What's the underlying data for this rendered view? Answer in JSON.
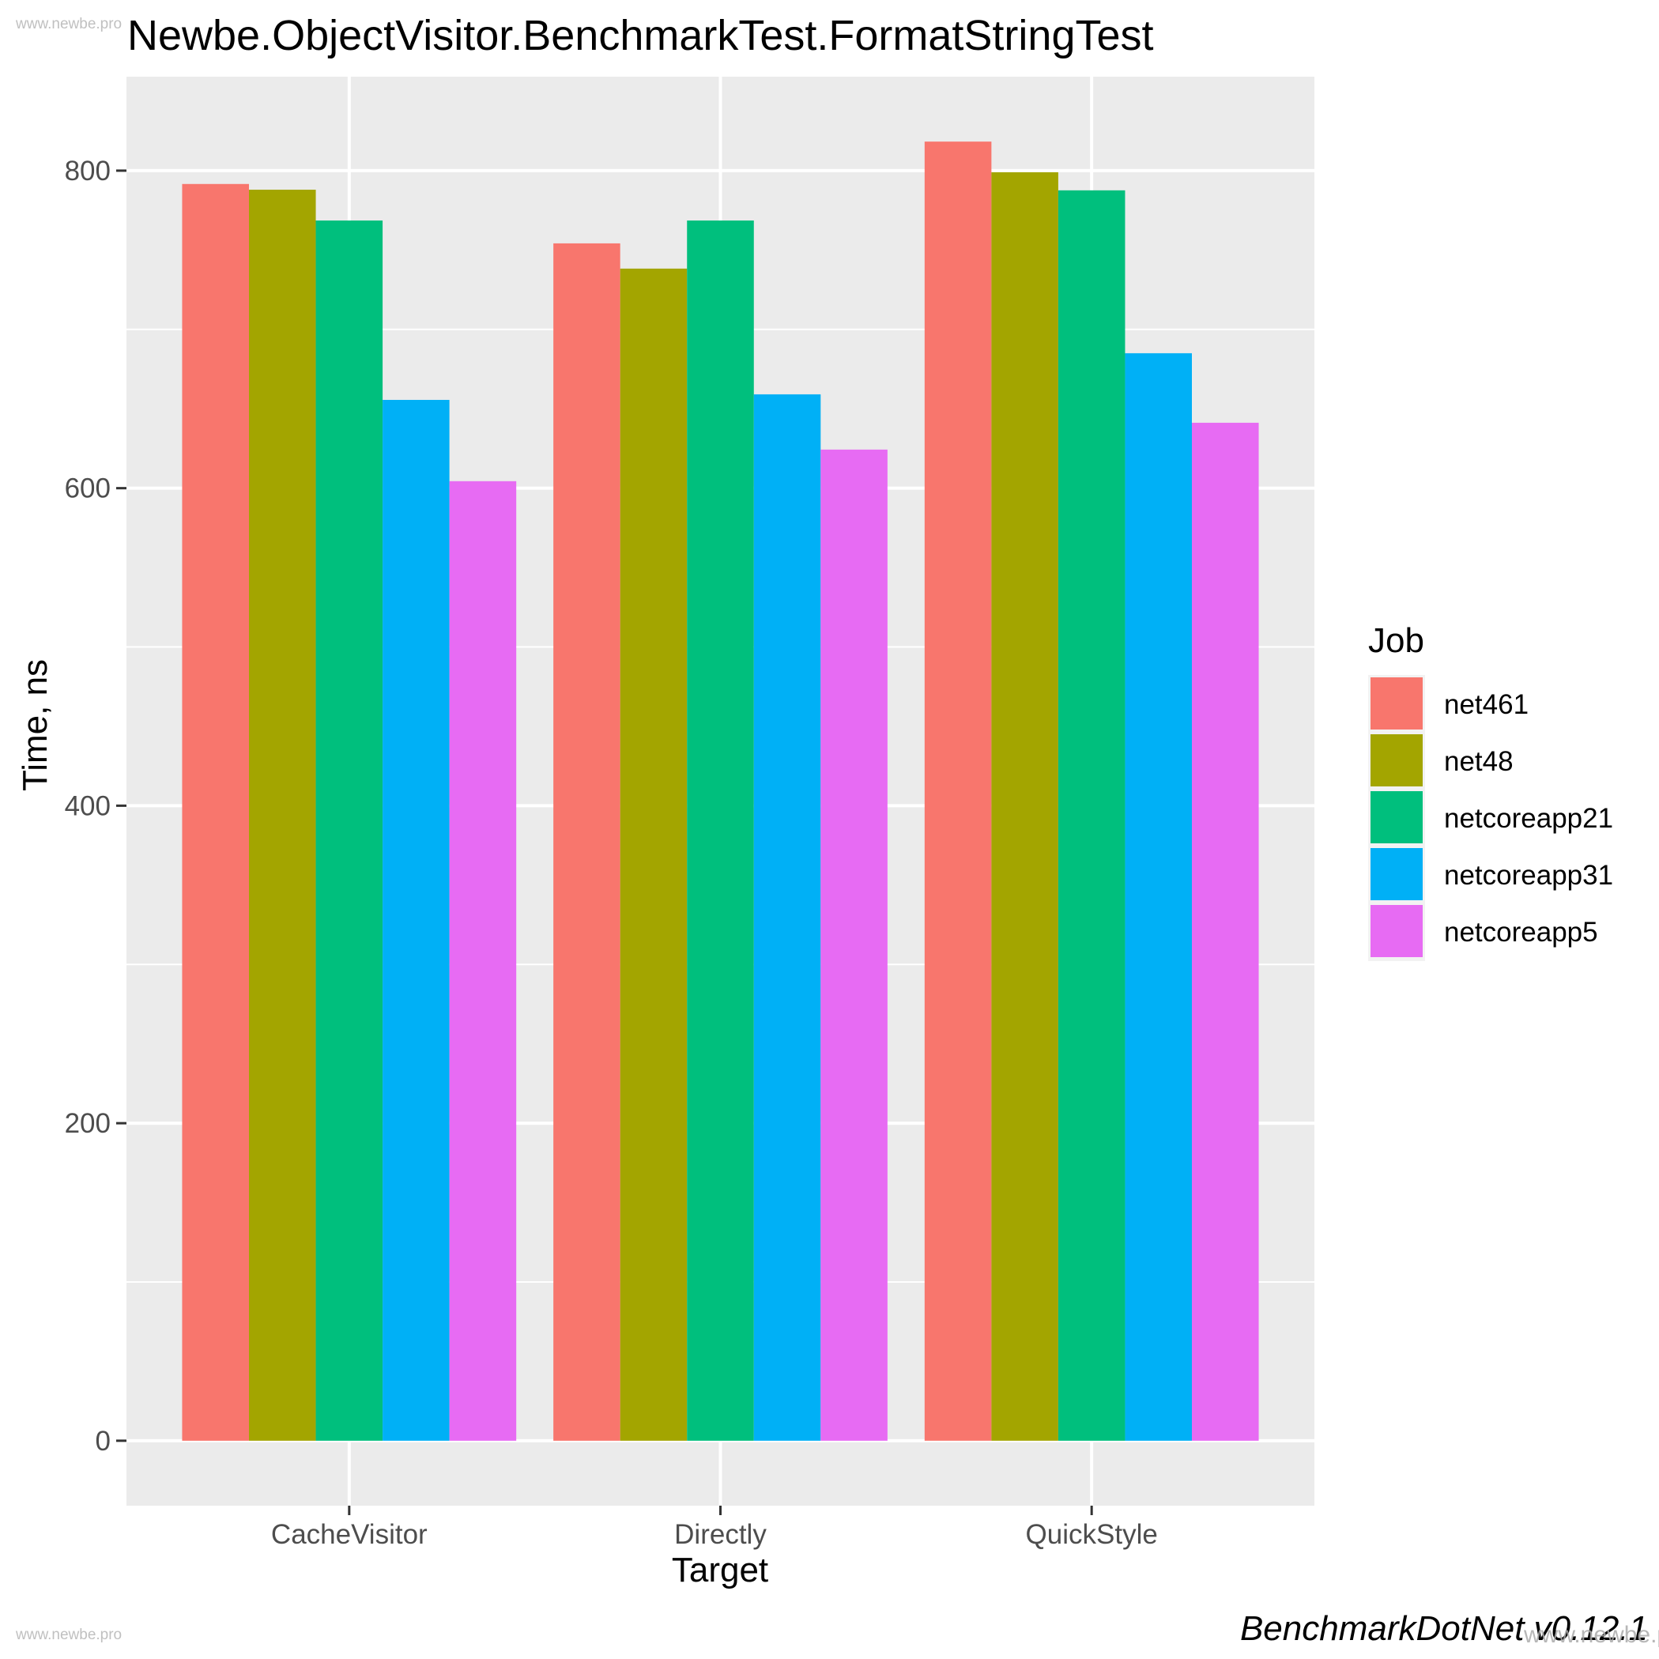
{
  "watermarks": {
    "top_left": "www.newbe.pro",
    "bottom_left": "www.newbe.pro",
    "bottom_right": "www.newbe.pro"
  },
  "header": {
    "title": "Newbe.ObjectVisitor.BenchmarkTest.FormatStringTest"
  },
  "footer": {
    "caption": "BenchmarkDotNet v0.12.1"
  },
  "axes": {
    "xlabel": "Target",
    "ylabel": "Time, ns"
  },
  "legend": {
    "title": "Job"
  },
  "colors": {
    "panel_background": "#EBEBEB",
    "gridline": "#FFFFFF",
    "tick_label": "#4D4D4D",
    "tick_mark": "#333333",
    "legend_key_background": "#F2F2F2",
    "net461": "#F8766D",
    "net48": "#A3A500",
    "netcoreapp21": "#00BF7D",
    "netcoreapp31": "#00B0F6",
    "netcoreapp5": "#E76BF3"
  },
  "chart_data": {
    "type": "bar",
    "title": "Newbe.ObjectVisitor.BenchmarkTest.FormatStringTest",
    "xlabel": "Target",
    "ylabel": "Time, ns",
    "categories": [
      "CacheVisitor",
      "Directly",
      "QuickStyle"
    ],
    "series": [
      {
        "name": "net461",
        "color": "#F8766D",
        "values": [
          791.6,
          754.2,
          818.3
        ]
      },
      {
        "name": "net48",
        "color": "#A3A500",
        "values": [
          788.0,
          738.3,
          799.0
        ]
      },
      {
        "name": "netcoreapp21",
        "color": "#00BF7D",
        "values": [
          768.6,
          768.6,
          787.6
        ]
      },
      {
        "name": "netcoreapp31",
        "color": "#00B0F6",
        "values": [
          655.6,
          659.1,
          685.0
        ]
      },
      {
        "name": "netcoreapp5",
        "color": "#E76BF3",
        "values": [
          604.4,
          624.3,
          641.2
        ]
      }
    ],
    "ylim": [
      -40.9,
      859.2
    ],
    "y_ticks": [
      0,
      200,
      400,
      600,
      800
    ],
    "y_tick_labels": [
      "0",
      "200",
      "400",
      "600",
      "800"
    ],
    "y_minor_gridlines": [
      100,
      300,
      500,
      700
    ],
    "grid": true,
    "legend_position": "right",
    "legend_title": "Job",
    "bar_position": "dodge",
    "caption": "BenchmarkDotNet v0.12.1"
  }
}
